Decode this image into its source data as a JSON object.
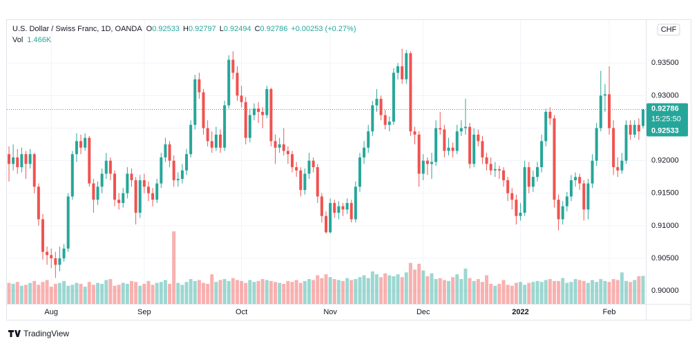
{
  "chart_data": {
    "type": "candlestick",
    "symbol": "U.S. Dollar / Swiss Franc, 1D, OANDA",
    "ohlc_letters": [
      "O",
      "H",
      "L",
      "C"
    ],
    "change": "+0.00253 (+0.27%)",
    "vol_name": "Vol",
    "vol_text": "1.466K",
    "currency": "CHF",
    "countdown": "15:25:50",
    "brand": "TradingView",
    "up_color": "#26a69a",
    "down_color": "#ef5350",
    "ylim": [
      0.898,
      0.9415
    ],
    "yticks": [
      {
        "value": 0.9,
        "label": "0.90000"
      },
      {
        "value": 0.905,
        "label": "0.90500"
      },
      {
        "value": 0.91,
        "label": "0.91000"
      },
      {
        "value": 0.915,
        "label": "0.91500"
      },
      {
        "value": 0.92,
        "label": "0.92000"
      },
      {
        "value": 0.925,
        "label": "0.92500"
      },
      {
        "value": 0.93,
        "label": "0.93000"
      },
      {
        "value": 0.935,
        "label": "0.93500"
      }
    ],
    "grid": true,
    "x_labels": [
      {
        "label": "Aug",
        "index": 10
      },
      {
        "label": "Sep",
        "index": 32
      },
      {
        "label": "Oct",
        "index": 55
      },
      {
        "label": "Nov",
        "index": 76
      },
      {
        "label": "Dec",
        "index": 98
      },
      {
        "label": "2022",
        "index": 121
      },
      {
        "label": "Feb",
        "index": 142
      }
    ],
    "ohlc": [
      [
        0.921,
        0.9222,
        0.9168,
        0.9195
      ],
      [
        0.9195,
        0.9225,
        0.9185,
        0.9205
      ],
      [
        0.9205,
        0.9218,
        0.918,
        0.919
      ],
      [
        0.919,
        0.922,
        0.9182,
        0.921
      ],
      [
        0.921,
        0.9215,
        0.9172,
        0.9195
      ],
      [
        0.9195,
        0.9218,
        0.9188,
        0.921
      ],
      [
        0.921,
        0.9212,
        0.915,
        0.916
      ],
      [
        0.916,
        0.9165,
        0.91,
        0.911
      ],
      [
        0.911,
        0.9118,
        0.9048,
        0.906
      ],
      [
        0.906,
        0.9068,
        0.904,
        0.9055
      ],
      [
        0.9055,
        0.9065,
        0.9035,
        0.905
      ],
      [
        0.905,
        0.906,
        0.902,
        0.904
      ],
      [
        0.904,
        0.9068,
        0.903,
        0.905
      ],
      [
        0.905,
        0.9072,
        0.9045,
        0.9065
      ],
      [
        0.9065,
        0.915,
        0.906,
        0.9145
      ],
      [
        0.9145,
        0.9215,
        0.914,
        0.921
      ],
      [
        0.921,
        0.9242,
        0.9198,
        0.923
      ],
      [
        0.923,
        0.924,
        0.921,
        0.922
      ],
      [
        0.922,
        0.9242,
        0.9215,
        0.9235
      ],
      [
        0.9235,
        0.9238,
        0.916,
        0.9165
      ],
      [
        0.9165,
        0.9172,
        0.912,
        0.914
      ],
      [
        0.914,
        0.9168,
        0.9132,
        0.916
      ],
      [
        0.916,
        0.9188,
        0.915,
        0.918
      ],
      [
        0.918,
        0.9212,
        0.9172,
        0.92
      ],
      [
        0.92,
        0.9205,
        0.917,
        0.918
      ],
      [
        0.918,
        0.9185,
        0.913,
        0.914
      ],
      [
        0.914,
        0.915,
        0.9125,
        0.9135
      ],
      [
        0.9135,
        0.9158,
        0.9128,
        0.915
      ],
      [
        0.915,
        0.919,
        0.9142,
        0.918
      ],
      [
        0.918,
        0.9188,
        0.916,
        0.917
      ],
      [
        0.917,
        0.9175,
        0.9102,
        0.912
      ],
      [
        0.912,
        0.9178,
        0.9112,
        0.917
      ],
      [
        0.917,
        0.918,
        0.915,
        0.916
      ],
      [
        0.916,
        0.9168,
        0.9138,
        0.915
      ],
      [
        0.915,
        0.9158,
        0.913,
        0.914
      ],
      [
        0.914,
        0.9172,
        0.9135,
        0.9165
      ],
      [
        0.9165,
        0.9212,
        0.9158,
        0.9205
      ],
      [
        0.9205,
        0.9235,
        0.9198,
        0.9225
      ],
      [
        0.9225,
        0.923,
        0.919,
        0.92
      ],
      [
        0.92,
        0.9208,
        0.916,
        0.917
      ],
      [
        0.917,
        0.9182,
        0.916,
        0.9172
      ],
      [
        0.9172,
        0.9195,
        0.9165,
        0.9185
      ],
      [
        0.9185,
        0.9218,
        0.9178,
        0.921
      ],
      [
        0.921,
        0.9262,
        0.9205,
        0.9255
      ],
      [
        0.9255,
        0.9332,
        0.9248,
        0.9325
      ],
      [
        0.9325,
        0.9335,
        0.9295,
        0.9305
      ],
      [
        0.9305,
        0.931,
        0.924,
        0.925
      ],
      [
        0.925,
        0.9262,
        0.9222,
        0.923
      ],
      [
        0.923,
        0.9245,
        0.9212,
        0.922
      ],
      [
        0.922,
        0.9252,
        0.9215,
        0.924
      ],
      [
        0.924,
        0.9248,
        0.9212,
        0.922
      ],
      [
        0.922,
        0.9292,
        0.9215,
        0.9285
      ],
      [
        0.9285,
        0.9362,
        0.928,
        0.9355
      ],
      [
        0.9355,
        0.9368,
        0.9325,
        0.9335
      ],
      [
        0.9335,
        0.9345,
        0.9292,
        0.93
      ],
      [
        0.93,
        0.9315,
        0.9282,
        0.929
      ],
      [
        0.929,
        0.9298,
        0.9225,
        0.9235
      ],
      [
        0.9235,
        0.928,
        0.9228,
        0.927
      ],
      [
        0.927,
        0.9288,
        0.9262,
        0.928
      ],
      [
        0.928,
        0.929,
        0.9258,
        0.9275
      ],
      [
        0.9275,
        0.9282,
        0.925,
        0.927
      ],
      [
        0.927,
        0.9315,
        0.9265,
        0.931
      ],
      [
        0.931,
        0.9312,
        0.9222,
        0.923
      ],
      [
        0.923,
        0.924,
        0.9195,
        0.922
      ],
      [
        0.922,
        0.9235,
        0.9212,
        0.9225
      ],
      [
        0.9225,
        0.925,
        0.9208,
        0.9215
      ],
      [
        0.9215,
        0.9222,
        0.9195,
        0.921
      ],
      [
        0.921,
        0.9215,
        0.9182,
        0.919
      ],
      [
        0.919,
        0.9198,
        0.9175,
        0.9185
      ],
      [
        0.9185,
        0.919,
        0.9145,
        0.9155
      ],
      [
        0.9155,
        0.9188,
        0.9148,
        0.918
      ],
      [
        0.918,
        0.9212,
        0.9172,
        0.92
      ],
      [
        0.92,
        0.9205,
        0.9182,
        0.919
      ],
      [
        0.919,
        0.9195,
        0.9135,
        0.9145
      ],
      [
        0.9145,
        0.915,
        0.9105,
        0.9115
      ],
      [
        0.9115,
        0.9122,
        0.9088,
        0.909
      ],
      [
        0.909,
        0.9142,
        0.9088,
        0.9135
      ],
      [
        0.9135,
        0.914,
        0.9112,
        0.912
      ],
      [
        0.912,
        0.9138,
        0.911,
        0.913
      ],
      [
        0.913,
        0.9135,
        0.9115,
        0.9125
      ],
      [
        0.9125,
        0.9142,
        0.9118,
        0.9135
      ],
      [
        0.9135,
        0.914,
        0.9105,
        0.911
      ],
      [
        0.911,
        0.9168,
        0.9105,
        0.916
      ],
      [
        0.916,
        0.9212,
        0.9152,
        0.9205
      ],
      [
        0.9205,
        0.923,
        0.9195,
        0.922
      ],
      [
        0.922,
        0.9255,
        0.9212,
        0.9245
      ],
      [
        0.9245,
        0.9292,
        0.9238,
        0.9285
      ],
      [
        0.9285,
        0.931,
        0.9275,
        0.9295
      ],
      [
        0.9295,
        0.93,
        0.9262,
        0.927
      ],
      [
        0.927,
        0.9278,
        0.9248,
        0.9255
      ],
      [
        0.9255,
        0.9268,
        0.9245,
        0.926
      ],
      [
        0.926,
        0.9342,
        0.9255,
        0.9335
      ],
      [
        0.9335,
        0.935,
        0.9325,
        0.9345
      ],
      [
        0.9345,
        0.9372,
        0.9318,
        0.9325
      ],
      [
        0.9325,
        0.937,
        0.9318,
        0.9365
      ],
      [
        0.9365,
        0.9368,
        0.9238,
        0.9245
      ],
      [
        0.9245,
        0.9252,
        0.9225,
        0.924
      ],
      [
        0.924,
        0.9245,
        0.916,
        0.918
      ],
      [
        0.918,
        0.921,
        0.917,
        0.92
      ],
      [
        0.92,
        0.9205,
        0.9178,
        0.9195
      ],
      [
        0.9195,
        0.9212,
        0.9172,
        0.9198
      ],
      [
        0.9198,
        0.9262,
        0.9192,
        0.925
      ],
      [
        0.925,
        0.9275,
        0.924,
        0.9248
      ],
      [
        0.9248,
        0.9255,
        0.9205,
        0.9215
      ],
      [
        0.9215,
        0.9235,
        0.9208,
        0.922
      ],
      [
        0.922,
        0.9228,
        0.9205,
        0.9215
      ],
      [
        0.9215,
        0.9255,
        0.921,
        0.9245
      ],
      [
        0.9245,
        0.9262,
        0.9238,
        0.925
      ],
      [
        0.925,
        0.9295,
        0.924,
        0.9252
      ],
      [
        0.9252,
        0.9258,
        0.9188,
        0.9195
      ],
      [
        0.9195,
        0.925,
        0.919,
        0.924
      ],
      [
        0.924,
        0.9248,
        0.9222,
        0.923
      ],
      [
        0.923,
        0.9238,
        0.9195,
        0.9205
      ],
      [
        0.9205,
        0.9212,
        0.9185,
        0.9195
      ],
      [
        0.9195,
        0.9205,
        0.9178,
        0.9185
      ],
      [
        0.9185,
        0.9198,
        0.9175,
        0.9187
      ],
      [
        0.9187,
        0.9192,
        0.9172,
        0.9185
      ],
      [
        0.9185,
        0.919,
        0.916,
        0.917
      ],
      [
        0.917,
        0.9175,
        0.9138,
        0.915
      ],
      [
        0.915,
        0.9158,
        0.9125,
        0.914
      ],
      [
        0.914,
        0.9148,
        0.9102,
        0.9115
      ],
      [
        0.9115,
        0.9135,
        0.9108,
        0.912
      ],
      [
        0.912,
        0.92,
        0.9115,
        0.919
      ],
      [
        0.919,
        0.9198,
        0.915,
        0.916
      ],
      [
        0.916,
        0.9185,
        0.9152,
        0.9175
      ],
      [
        0.9175,
        0.9198,
        0.9168,
        0.919
      ],
      [
        0.919,
        0.924,
        0.9182,
        0.923
      ],
      [
        0.923,
        0.928,
        0.9222,
        0.9275
      ],
      [
        0.9275,
        0.9282,
        0.9255,
        0.9265
      ],
      [
        0.9265,
        0.927,
        0.9128,
        0.914
      ],
      [
        0.914,
        0.9148,
        0.9093,
        0.911
      ],
      [
        0.911,
        0.9138,
        0.9102,
        0.913
      ],
      [
        0.913,
        0.9152,
        0.9122,
        0.9145
      ],
      [
        0.9145,
        0.9178,
        0.9138,
        0.917
      ],
      [
        0.917,
        0.9182,
        0.916,
        0.9175
      ],
      [
        0.9175,
        0.918,
        0.9155,
        0.9165
      ],
      [
        0.9165,
        0.917,
        0.9108,
        0.9125
      ],
      [
        0.9125,
        0.9172,
        0.911,
        0.9165
      ],
      [
        0.9165,
        0.921,
        0.9158,
        0.92
      ],
      [
        0.92,
        0.9258,
        0.9192,
        0.925
      ],
      [
        0.925,
        0.9338,
        0.9245,
        0.93
      ],
      [
        0.93,
        0.9318,
        0.9275,
        0.9302
      ],
      [
        0.9302,
        0.9345,
        0.924,
        0.925
      ],
      [
        0.925,
        0.9262,
        0.9178,
        0.919
      ],
      [
        0.919,
        0.9205,
        0.9175,
        0.9185
      ],
      [
        0.9185,
        0.9212,
        0.918,
        0.92
      ],
      [
        0.92,
        0.9262,
        0.9195,
        0.9255
      ],
      [
        0.9255,
        0.9262,
        0.9232,
        0.924
      ],
      [
        0.924,
        0.9262,
        0.9235,
        0.9255
      ],
      [
        0.9255,
        0.9265,
        0.9232,
        0.9245
      ],
      [
        0.92533,
        0.92797,
        0.92494,
        0.92786
      ]
    ],
    "volume": [
      1.1,
      1.05,
      1.15,
      0.95,
      1.0,
      1.1,
      1.2,
      1.0,
      1.15,
      1.25,
      0.9,
      1.05,
      1.1,
      1.2,
      0.95,
      1.0,
      1.1,
      1.05,
      0.9,
      1.15,
      1.0,
      1.1,
      1.05,
      1.25,
      1.3,
      0.95,
      1.0,
      1.1,
      1.05,
      1.2,
      1.15,
      0.95,
      1.05,
      1.2,
      1.0,
      1.1,
      1.15,
      1.25,
      1.05,
      3.8,
      1.1,
      1.0,
      1.15,
      1.3,
      1.2,
      1.25,
      1.1,
      1.05,
      1.55,
      1.15,
      1.25,
      1.3,
      1.2,
      1.35,
      1.25,
      1.2,
      1.1,
      1.25,
      1.15,
      1.2,
      1.3,
      1.25,
      1.2,
      1.15,
      1.1,
      1.05,
      1.2,
      1.15,
      1.25,
      1.1,
      1.2,
      1.3,
      1.25,
      1.5,
      1.35,
      1.55,
      1.4,
      1.3,
      1.25,
      1.2,
      1.35,
      1.25,
      1.3,
      1.4,
      1.5,
      1.35,
      1.7,
      1.55,
      1.4,
      1.6,
      1.5,
      1.45,
      1.55,
      1.4,
      1.65,
      2.15,
      1.8,
      2.1,
      1.75,
      1.45,
      1.6,
      1.3,
      1.35,
      1.25,
      1.2,
      1.4,
      1.55,
      1.3,
      1.85,
      1.35,
      1.2,
      1.3,
      1.15,
      1.5,
      1.05,
      0.95,
      1.05,
      1.25,
      1.0,
      0.95,
      1.1,
      1.15,
      1.0,
      1.1,
      1.15,
      1.2,
      1.15,
      1.25,
      1.3,
      1.2,
      1.2,
      1.35,
      1.1,
      1.15,
      1.3,
      1.25,
      1.2,
      1.1,
      1.25,
      1.15,
      1.3,
      1.2,
      1.15,
      1.3,
      1.25,
      1.65,
      1.2,
      1.15,
      1.25,
      1.45,
      1.466
    ]
  }
}
